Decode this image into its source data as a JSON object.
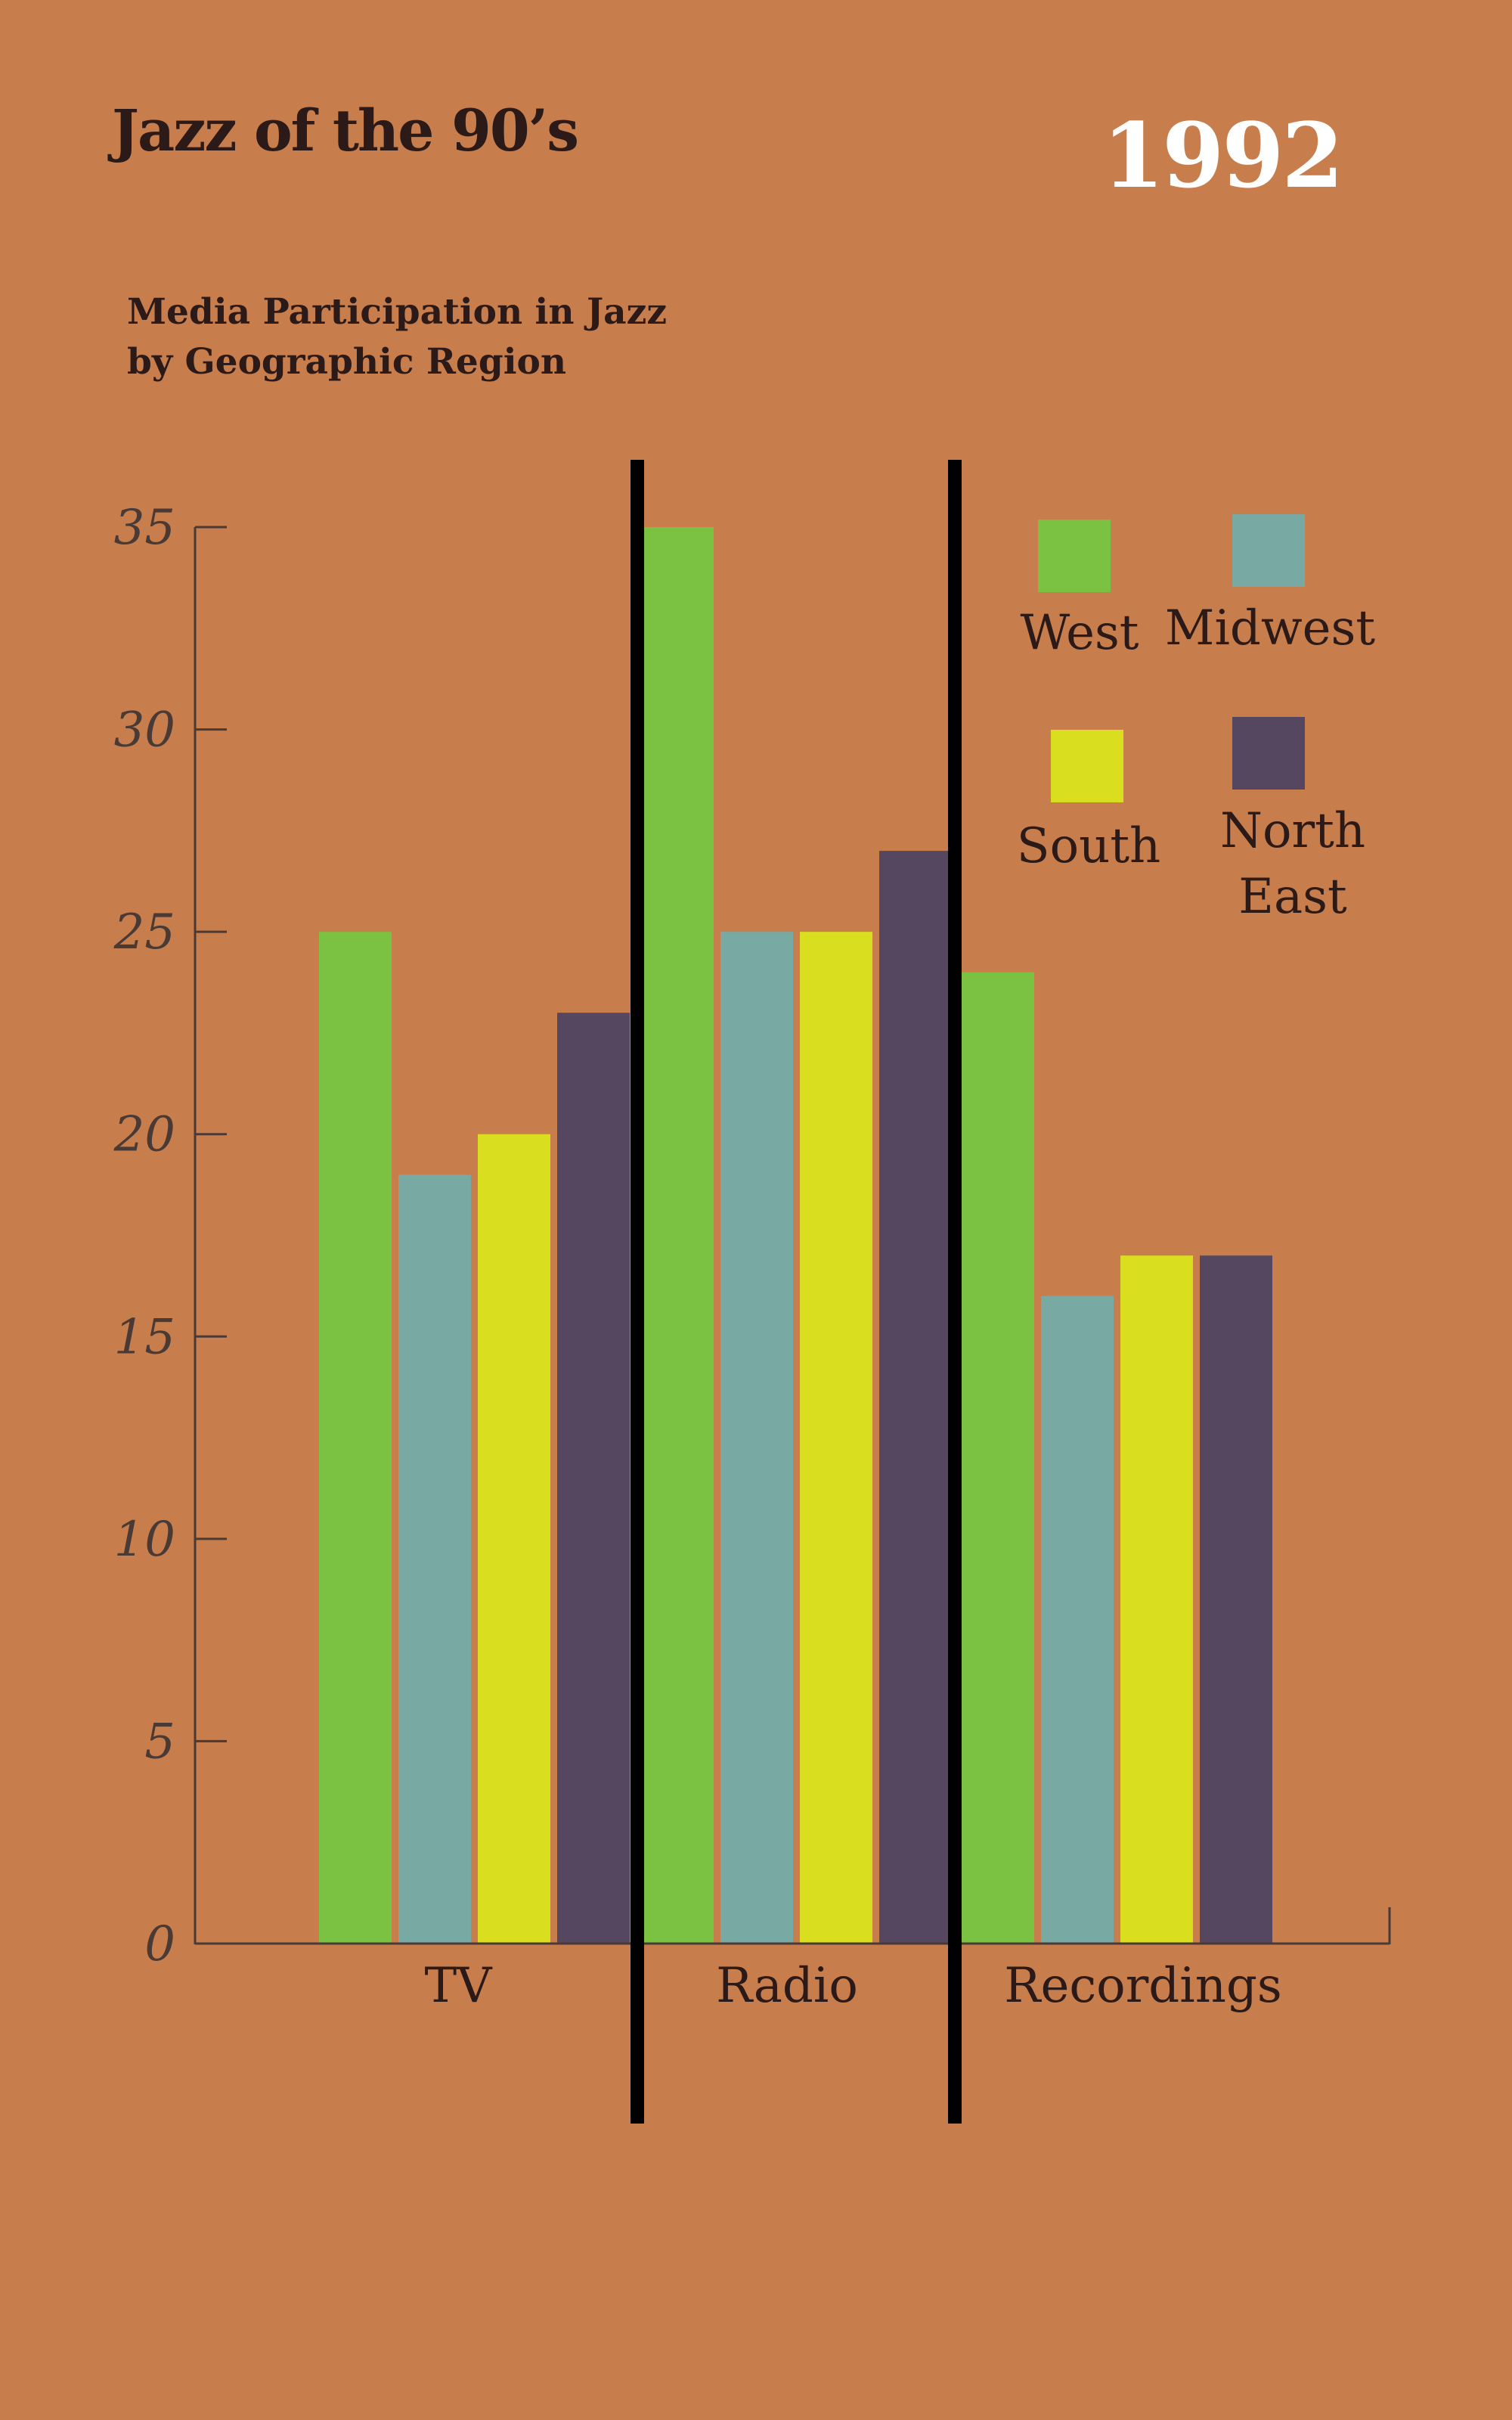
{
  "header": {
    "title": "Jazz of the 90’s",
    "year": "1992",
    "subtitle": "Media Participation in Jazz by Geographic Region"
  },
  "colors": {
    "background": "#C87E4C",
    "axis": "#4A3A36",
    "divider": "#000000"
  },
  "chart_data": {
    "type": "bar",
    "title": "Media Participation in Jazz by Geographic Region",
    "xlabel": "",
    "ylabel": "",
    "categories": [
      "TV",
      "Radio",
      "Recordings"
    ],
    "series": [
      {
        "name": "West",
        "color": "#7BC142",
        "values": [
          25,
          35,
          24
        ]
      },
      {
        "name": "Midwest",
        "color": "#79A9A3",
        "values": [
          19,
          25,
          16
        ]
      },
      {
        "name": "South",
        "color": "#D9DF1E",
        "values": [
          20,
          25,
          17
        ]
      },
      {
        "name": "North East",
        "color": "#55475F",
        "values": [
          23,
          27,
          17
        ]
      }
    ],
    "ylim": [
      0,
      35
    ],
    "yticks": [
      0,
      5,
      10,
      15,
      20,
      25,
      30,
      35
    ],
    "grid": false,
    "legend_position": "top-right"
  }
}
